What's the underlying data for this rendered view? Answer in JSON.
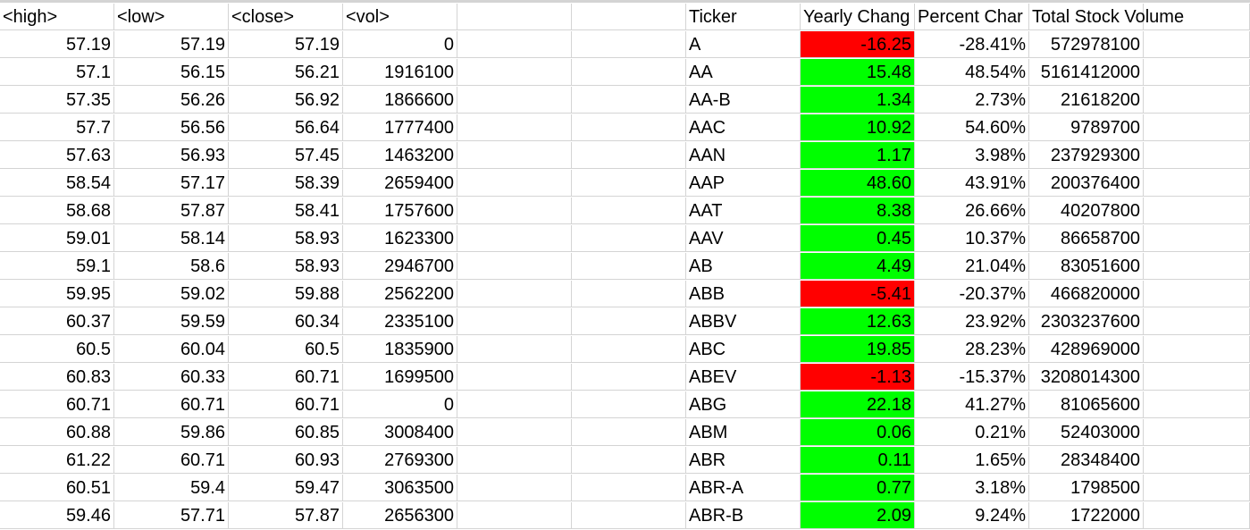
{
  "left_table": {
    "headers": [
      "<high>",
      "<low>",
      "<close>",
      "<vol>"
    ],
    "rows": [
      [
        "57.19",
        "57.19",
        "57.19",
        "0"
      ],
      [
        "57.1",
        "56.15",
        "56.21",
        "1916100"
      ],
      [
        "57.35",
        "56.26",
        "56.92",
        "1866600"
      ],
      [
        "57.7",
        "56.56",
        "56.64",
        "1777400"
      ],
      [
        "57.63",
        "56.93",
        "57.45",
        "1463200"
      ],
      [
        "58.54",
        "57.17",
        "58.39",
        "2659400"
      ],
      [
        "58.68",
        "57.87",
        "58.41",
        "1757600"
      ],
      [
        "59.01",
        "58.14",
        "58.93",
        "1623300"
      ],
      [
        "59.1",
        "58.6",
        "58.93",
        "2946700"
      ],
      [
        "59.95",
        "59.02",
        "59.88",
        "2562200"
      ],
      [
        "60.37",
        "59.59",
        "60.34",
        "2335100"
      ],
      [
        "60.5",
        "60.04",
        "60.5",
        "1835900"
      ],
      [
        "60.83",
        "60.33",
        "60.71",
        "1699500"
      ],
      [
        "60.71",
        "60.71",
        "60.71",
        "0"
      ],
      [
        "60.88",
        "59.86",
        "60.85",
        "3008400"
      ],
      [
        "61.22",
        "60.71",
        "60.93",
        "2769300"
      ],
      [
        "60.51",
        "59.4",
        "59.47",
        "3063500"
      ],
      [
        "59.46",
        "57.71",
        "57.87",
        "2656300"
      ]
    ]
  },
  "summary_table": {
    "headers": [
      "Ticker",
      "Yearly Chang",
      "Percent Char",
      "Total Stock Volume"
    ],
    "rows": [
      {
        "ticker": "A",
        "change": "-16.25",
        "percent": "-28.41%",
        "volume": "572978100",
        "status": "negative"
      },
      {
        "ticker": "AA",
        "change": "15.48",
        "percent": "48.54%",
        "volume": "5161412000",
        "status": "positive"
      },
      {
        "ticker": "AA-B",
        "change": "1.34",
        "percent": "2.73%",
        "volume": "21618200",
        "status": "positive"
      },
      {
        "ticker": "AAC",
        "change": "10.92",
        "percent": "54.60%",
        "volume": "9789700",
        "status": "positive"
      },
      {
        "ticker": "AAN",
        "change": "1.17",
        "percent": "3.98%",
        "volume": "237929300",
        "status": "positive"
      },
      {
        "ticker": "AAP",
        "change": "48.60",
        "percent": "43.91%",
        "volume": "200376400",
        "status": "positive"
      },
      {
        "ticker": "AAT",
        "change": "8.38",
        "percent": "26.66%",
        "volume": "40207800",
        "status": "positive"
      },
      {
        "ticker": "AAV",
        "change": "0.45",
        "percent": "10.37%",
        "volume": "86658700",
        "status": "positive"
      },
      {
        "ticker": "AB",
        "change": "4.49",
        "percent": "21.04%",
        "volume": "83051600",
        "status": "positive"
      },
      {
        "ticker": "ABB",
        "change": "-5.41",
        "percent": "-20.37%",
        "volume": "466820000",
        "status": "negative"
      },
      {
        "ticker": "ABBV",
        "change": "12.63",
        "percent": "23.92%",
        "volume": "2303237600",
        "status": "positive"
      },
      {
        "ticker": "ABC",
        "change": "19.85",
        "percent": "28.23%",
        "volume": "428969000",
        "status": "positive"
      },
      {
        "ticker": "ABEV",
        "change": "-1.13",
        "percent": "-15.37%",
        "volume": "3208014300",
        "status": "negative"
      },
      {
        "ticker": "ABG",
        "change": "22.18",
        "percent": "41.27%",
        "volume": "81065600",
        "status": "positive"
      },
      {
        "ticker": "ABM",
        "change": "0.06",
        "percent": "0.21%",
        "volume": "52403000",
        "status": "positive"
      },
      {
        "ticker": "ABR",
        "change": "0.11",
        "percent": "1.65%",
        "volume": "28348400",
        "status": "positive"
      },
      {
        "ticker": "ABR-A",
        "change": "0.77",
        "percent": "3.18%",
        "volume": "1798500",
        "status": "positive"
      },
      {
        "ticker": "ABR-B",
        "change": "2.09",
        "percent": "9.24%",
        "volume": "1722000",
        "status": "positive"
      }
    ]
  },
  "colors": {
    "positive_fill": "#00ff00",
    "negative_fill": "#ff0000",
    "gridline": "#d4d4d4"
  }
}
